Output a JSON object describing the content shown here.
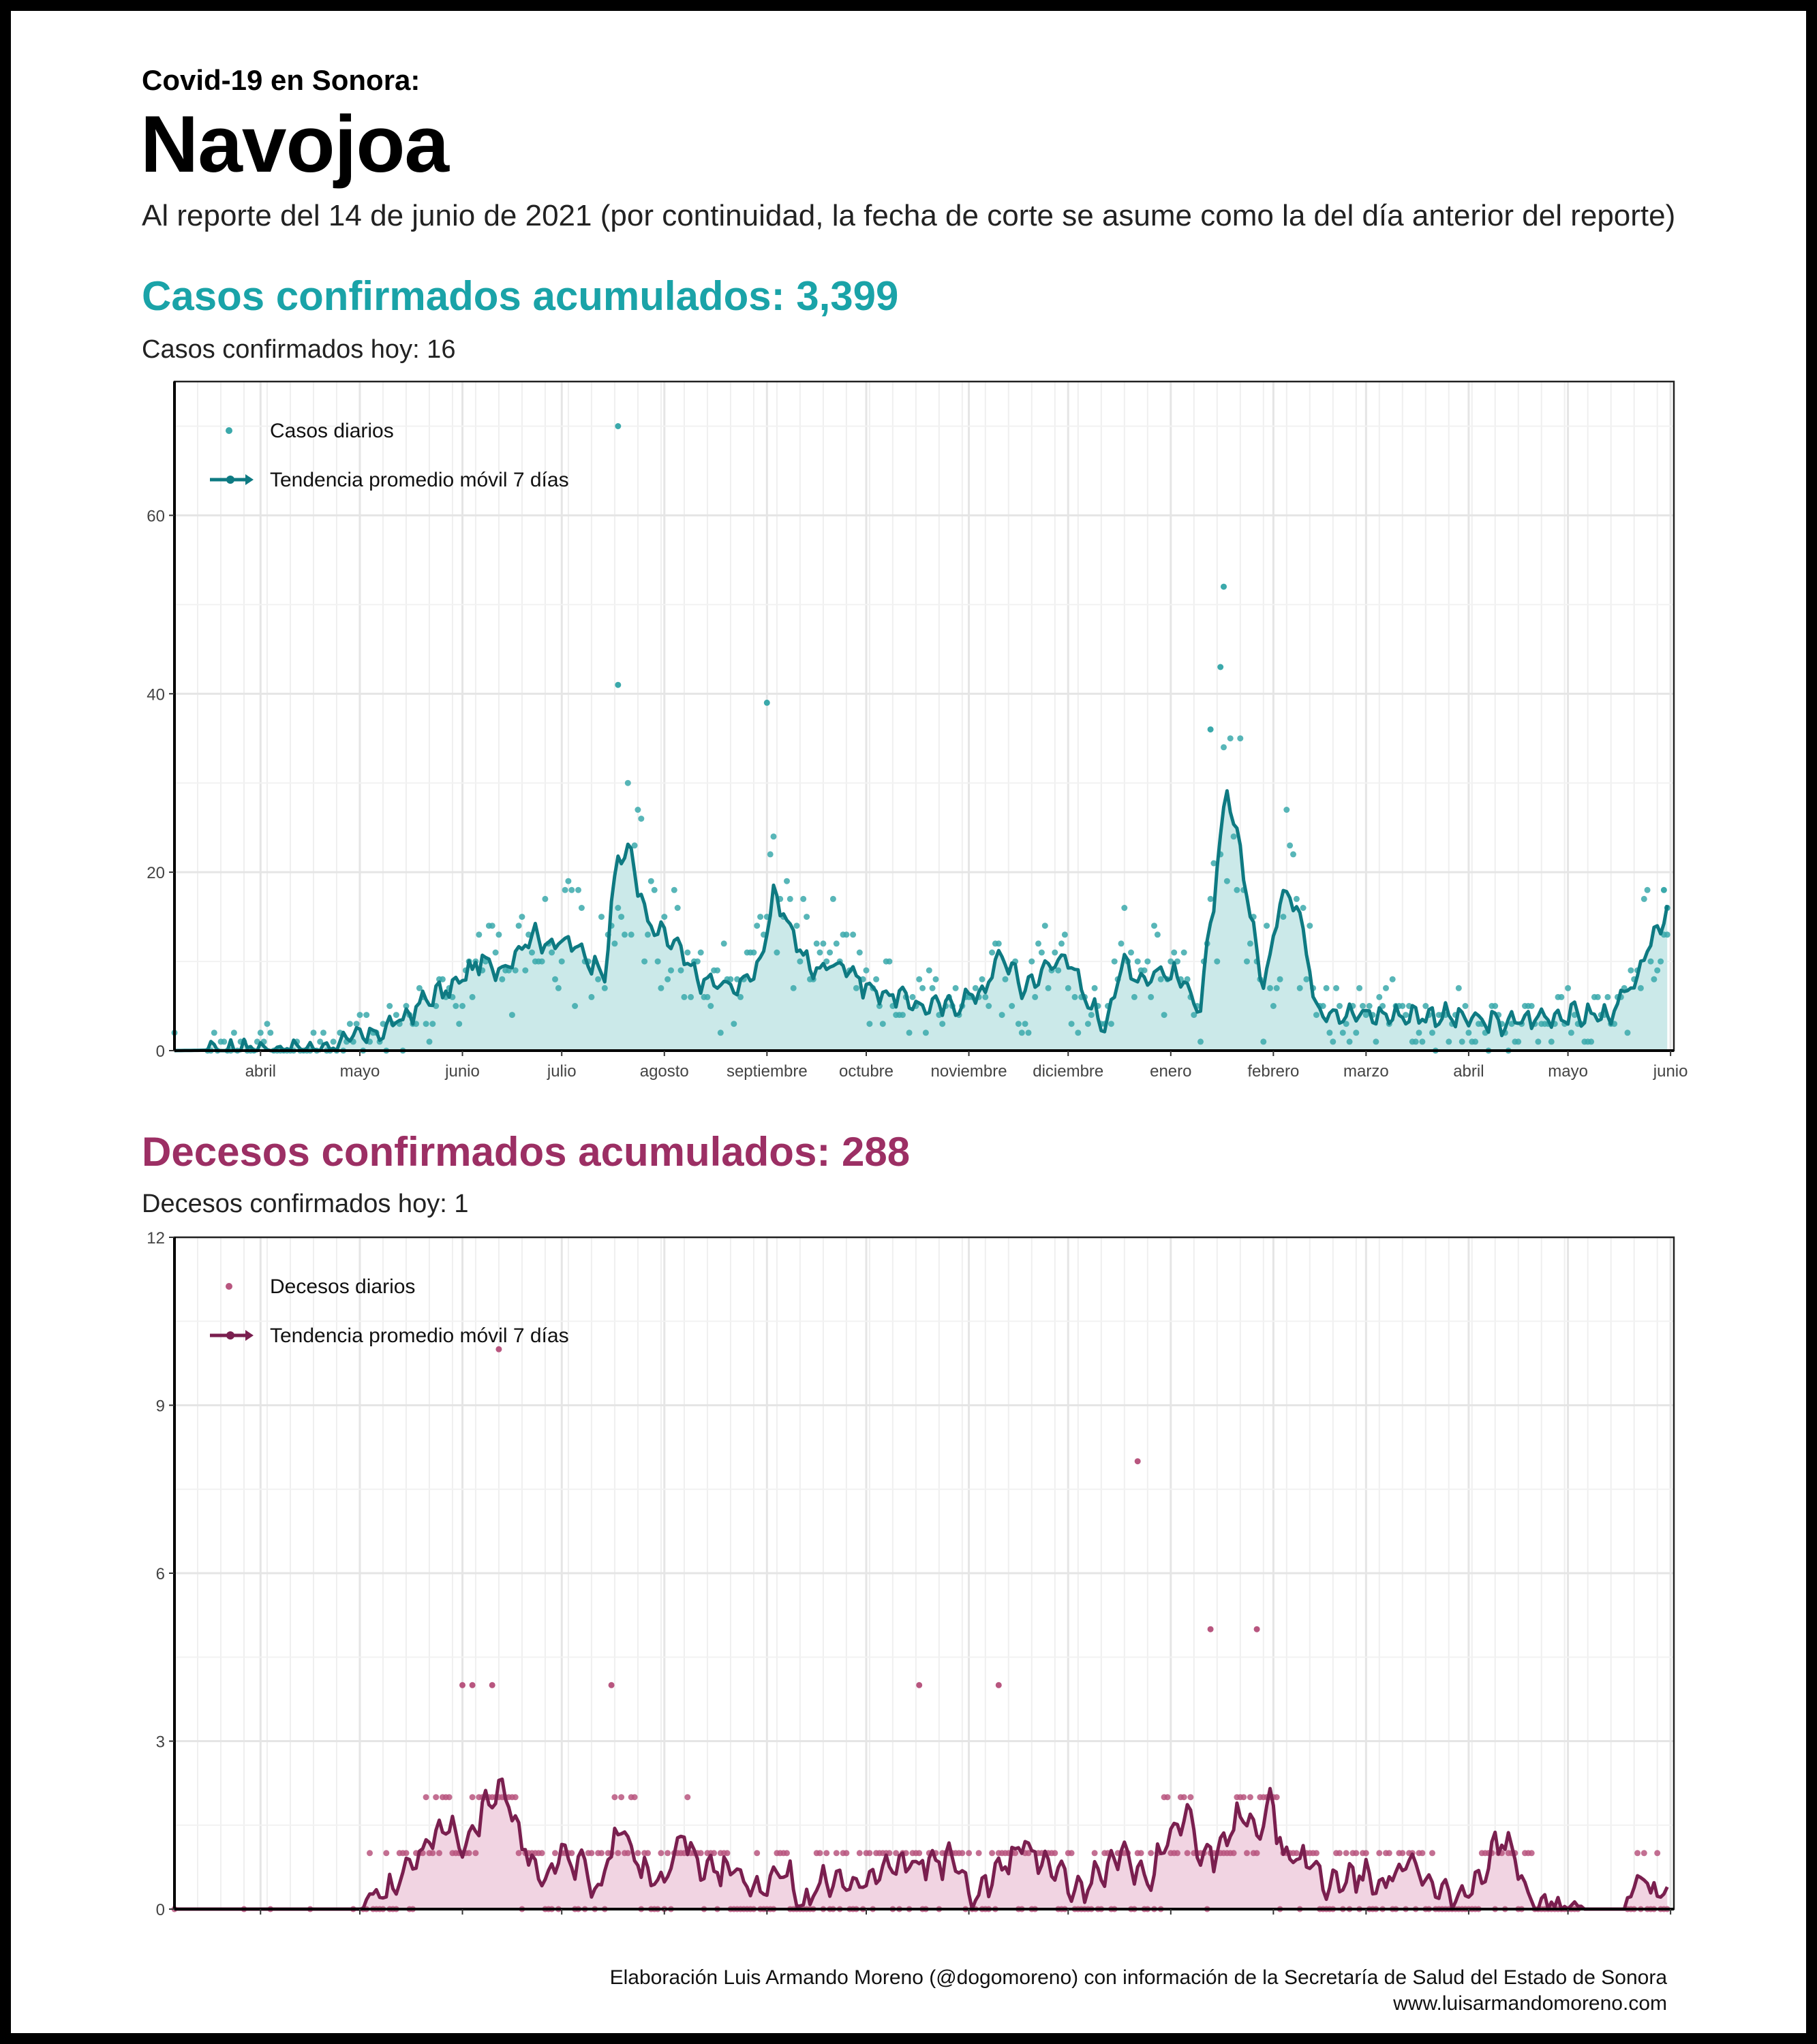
{
  "header": {
    "kicker": "Covid-19 en Sonora:",
    "title": "Navojoa",
    "subtitle": "Al reporte del 14 de junio de 2021 (por continuidad, la fecha de corte se asume como la del día anterior del reporte)"
  },
  "cases": {
    "headline": "Casos confirmados acumulados: 3,399",
    "today": "Casos confirmados hoy: 16"
  },
  "deaths": {
    "headline": "Decesos confirmados acumulados: 288",
    "today": "Decesos confirmados hoy: 1"
  },
  "credit": {
    "line1": "Elaboración Luis Armando Moreno (@dogomoreno) con información de la Secretaría de Salud del Estado de Sonora",
    "line2": "www.luisarmandomoreno.com"
  },
  "colors": {
    "cases_points": "#3ba9ab",
    "cases_line": "#0e7a82",
    "cases_fill": "#cbe9e9",
    "deaths_points": "#b8567f",
    "deaths_line": "#7a1f4f",
    "deaths_fill": "#f1d4e2",
    "grid": "#e5e5e5"
  },
  "chart_data": [
    {
      "type": "scatter",
      "overlay": "line + area (7-day moving average)",
      "x_axis": "date",
      "x_ticks": [
        "abril",
        "mayo",
        "junio",
        "julio",
        "agosto",
        "septiembre",
        "octubre",
        "noviembre",
        "diciembre",
        "enero",
        "febrero",
        "marzo",
        "abril",
        "mayo",
        "junio"
      ],
      "y_ticks": [
        "0",
        "20",
        "40",
        "60"
      ],
      "ylim": [
        0,
        75
      ],
      "grid": true,
      "legend_position": "top-left",
      "series": [
        {
          "name": "Casos diarios",
          "style": "points",
          "notable_points": [
            {
              "x": "2020-08-01",
              "y": 70
            },
            {
              "x": "2020-08-01",
              "y": 41
            },
            {
              "x": "2020-09-15",
              "y": 39
            },
            {
              "x": "2021-01-31",
              "y": 52
            },
            {
              "x": "2021-01-30",
              "y": 43
            },
            {
              "x": "2021-01-27",
              "y": 36
            },
            {
              "x": "2021-06-13",
              "y": 18
            },
            {
              "x": "2021-06-14",
              "y": 16
            }
          ]
        },
        {
          "name": "Tendencia promedio móvil 7 días",
          "style": "line",
          "points": [
            {
              "x": "2020-03-20",
              "y": 0
            },
            {
              "x": "2020-05-01",
              "y": 0.2
            },
            {
              "x": "2020-05-10",
              "y": 1
            },
            {
              "x": "2020-05-20",
              "y": 2
            },
            {
              "x": "2020-05-28",
              "y": 3.5
            },
            {
              "x": "2020-06-05",
              "y": 6
            },
            {
              "x": "2020-06-12",
              "y": 7
            },
            {
              "x": "2020-06-20",
              "y": 10
            },
            {
              "x": "2020-06-26",
              "y": 9
            },
            {
              "x": "2020-07-01",
              "y": 11
            },
            {
              "x": "2020-07-06",
              "y": 13
            },
            {
              "x": "2020-07-12",
              "y": 12
            },
            {
              "x": "2020-07-18",
              "y": 12
            },
            {
              "x": "2020-07-24",
              "y": 10
            },
            {
              "x": "2020-07-28",
              "y": 9
            },
            {
              "x": "2020-08-01",
              "y": 22
            },
            {
              "x": "2020-08-05",
              "y": 22
            },
            {
              "x": "2020-08-10",
              "y": 14
            },
            {
              "x": "2020-08-18",
              "y": 12
            },
            {
              "x": "2020-08-25",
              "y": 8
            },
            {
              "x": "2020-09-05",
              "y": 7
            },
            {
              "x": "2020-09-12",
              "y": 9
            },
            {
              "x": "2020-09-17",
              "y": 17
            },
            {
              "x": "2020-09-22",
              "y": 14
            },
            {
              "x": "2020-09-28",
              "y": 9
            },
            {
              "x": "2020-10-08",
              "y": 10
            },
            {
              "x": "2020-10-15",
              "y": 7
            },
            {
              "x": "2020-10-25",
              "y": 6
            },
            {
              "x": "2020-11-01",
              "y": 5
            },
            {
              "x": "2020-11-10",
              "y": 5
            },
            {
              "x": "2020-11-20",
              "y": 7
            },
            {
              "x": "2020-11-25",
              "y": 11
            },
            {
              "x": "2020-12-01",
              "y": 7
            },
            {
              "x": "2020-12-08",
              "y": 9
            },
            {
              "x": "2020-12-14",
              "y": 11
            },
            {
              "x": "2020-12-20",
              "y": 6
            },
            {
              "x": "2020-12-26",
              "y": 3
            },
            {
              "x": "2021-01-01",
              "y": 10
            },
            {
              "x": "2021-01-06",
              "y": 8
            },
            {
              "x": "2021-01-12",
              "y": 9
            },
            {
              "x": "2021-01-18",
              "y": 8
            },
            {
              "x": "2021-01-24",
              "y": 5
            },
            {
              "x": "2021-02-01",
              "y": 29
            },
            {
              "x": "2021-02-06",
              "y": 20
            },
            {
              "x": "2021-02-12",
              "y": 7
            },
            {
              "x": "2021-02-18",
              "y": 18
            },
            {
              "x": "2021-02-22",
              "y": 17
            },
            {
              "x": "2021-02-28",
              "y": 5
            },
            {
              "x": "2021-03-10",
              "y": 4
            },
            {
              "x": "2021-03-25",
              "y": 4
            },
            {
              "x": "2021-04-05",
              "y": 4
            },
            {
              "x": "2021-04-25",
              "y": 3
            },
            {
              "x": "2021-05-10",
              "y": 4
            },
            {
              "x": "2021-05-20",
              "y": 4
            },
            {
              "x": "2021-05-28",
              "y": 4
            },
            {
              "x": "2021-06-05",
              "y": 8
            },
            {
              "x": "2021-06-10",
              "y": 13
            },
            {
              "x": "2021-06-14",
              "y": 16
            }
          ]
        }
      ]
    },
    {
      "type": "scatter",
      "overlay": "line + area (7-day moving average)",
      "x_axis": "date",
      "x_ticks": [
        "abril",
        "mayo",
        "junio",
        "julio",
        "agosto",
        "septiembre",
        "octubre",
        "noviembre",
        "diciembre",
        "enero",
        "febrero",
        "marzo",
        "abril",
        "mayo",
        "junio"
      ],
      "y_ticks": [
        "0",
        "3",
        "6",
        "9",
        "12"
      ],
      "ylim": [
        0,
        12
      ],
      "grid": true,
      "legend_position": "top-left",
      "series": [
        {
          "name": "Decesos diarios",
          "style": "points",
          "notable_points": [
            {
              "x": "2020-06-26",
              "y": 10
            },
            {
              "x": "2021-01-05",
              "y": 8
            },
            {
              "x": "2021-01-27",
              "y": 5
            },
            {
              "x": "2021-02-10",
              "y": 5
            },
            {
              "x": "2020-06-15",
              "y": 4
            },
            {
              "x": "2020-06-18",
              "y": 4
            },
            {
              "x": "2020-06-24",
              "y": 4
            },
            {
              "x": "2020-07-30",
              "y": 4
            },
            {
              "x": "2020-10-31",
              "y": 4
            },
            {
              "x": "2020-11-24",
              "y": 4
            }
          ]
        },
        {
          "name": "Tendencia promedio móvil 7 días",
          "style": "line",
          "points": [
            {
              "x": "2020-03-20",
              "y": 0
            },
            {
              "x": "2020-05-15",
              "y": 0
            },
            {
              "x": "2020-05-16",
              "y": 0.15
            },
            {
              "x": "2020-05-25",
              "y": 0.3
            },
            {
              "x": "2020-06-05",
              "y": 1.2
            },
            {
              "x": "2020-06-12",
              "y": 1.5
            },
            {
              "x": "2020-06-16",
              "y": 1.0
            },
            {
              "x": "2020-06-22",
              "y": 1.9
            },
            {
              "x": "2020-06-27",
              "y": 2.2
            },
            {
              "x": "2020-07-03",
              "y": 1.2
            },
            {
              "x": "2020-07-08",
              "y": 0.5
            },
            {
              "x": "2020-07-15",
              "y": 1.0
            },
            {
              "x": "2020-07-21",
              "y": 0.8
            },
            {
              "x": "2020-07-25",
              "y": 0.2
            },
            {
              "x": "2020-08-02",
              "y": 1.5
            },
            {
              "x": "2020-08-08",
              "y": 0.7
            },
            {
              "x": "2020-08-15",
              "y": 0.4
            },
            {
              "x": "2020-08-20",
              "y": 1.4
            },
            {
              "x": "2020-08-26",
              "y": 0.6
            },
            {
              "x": "2020-09-05",
              "y": 0.7
            },
            {
              "x": "2020-09-12",
              "y": 0.3
            },
            {
              "x": "2020-09-20",
              "y": 0.8
            },
            {
              "x": "2020-09-25",
              "y": 0.1
            },
            {
              "x": "2020-10-05",
              "y": 0.6
            },
            {
              "x": "2020-10-12",
              "y": 0.3
            },
            {
              "x": "2020-10-20",
              "y": 0.7
            },
            {
              "x": "2020-10-30",
              "y": 0.8
            },
            {
              "x": "2020-11-10",
              "y": 0.9
            },
            {
              "x": "2020-11-16",
              "y": 0.2
            },
            {
              "x": "2020-11-26",
              "y": 0.8
            },
            {
              "x": "2020-12-02",
              "y": 1.1
            },
            {
              "x": "2020-12-10",
              "y": 0.8
            },
            {
              "x": "2020-12-18",
              "y": 0.3
            },
            {
              "x": "2020-12-25",
              "y": 0.6
            },
            {
              "x": "2021-01-01",
              "y": 1.0
            },
            {
              "x": "2021-01-08",
              "y": 0.5
            },
            {
              "x": "2021-01-15",
              "y": 1.4
            },
            {
              "x": "2021-01-20",
              "y": 1.8
            },
            {
              "x": "2021-01-24",
              "y": 0.9
            },
            {
              "x": "2021-01-31",
              "y": 1.1
            },
            {
              "x": "2021-02-06",
              "y": 1.8
            },
            {
              "x": "2021-02-10",
              "y": 1.4
            },
            {
              "x": "2021-02-14",
              "y": 1.9
            },
            {
              "x": "2021-02-18",
              "y": 1.0
            },
            {
              "x": "2021-02-25",
              "y": 0.9
            },
            {
              "x": "2021-03-03",
              "y": 0.4
            },
            {
              "x": "2021-03-10",
              "y": 0.6
            },
            {
              "x": "2021-03-20",
              "y": 0.5
            },
            {
              "x": "2021-03-28",
              "y": 0.8
            },
            {
              "x": "2021-04-05",
              "y": 0.3
            },
            {
              "x": "2021-04-15",
              "y": 0.2
            },
            {
              "x": "2021-04-25",
              "y": 1.3
            },
            {
              "x": "2021-05-01",
              "y": 0.6
            },
            {
              "x": "2021-05-05",
              "y": 0.1
            },
            {
              "x": "2021-05-18",
              "y": 0.1
            },
            {
              "x": "2021-05-20",
              "y": 0
            },
            {
              "x": "2021-06-01",
              "y": 0
            },
            {
              "x": "2021-06-02",
              "y": 0.3
            },
            {
              "x": "2021-06-06",
              "y": 0.6
            },
            {
              "x": "2021-06-10",
              "y": 0.3
            },
            {
              "x": "2021-06-14",
              "y": 0.4
            }
          ]
        }
      ]
    }
  ]
}
